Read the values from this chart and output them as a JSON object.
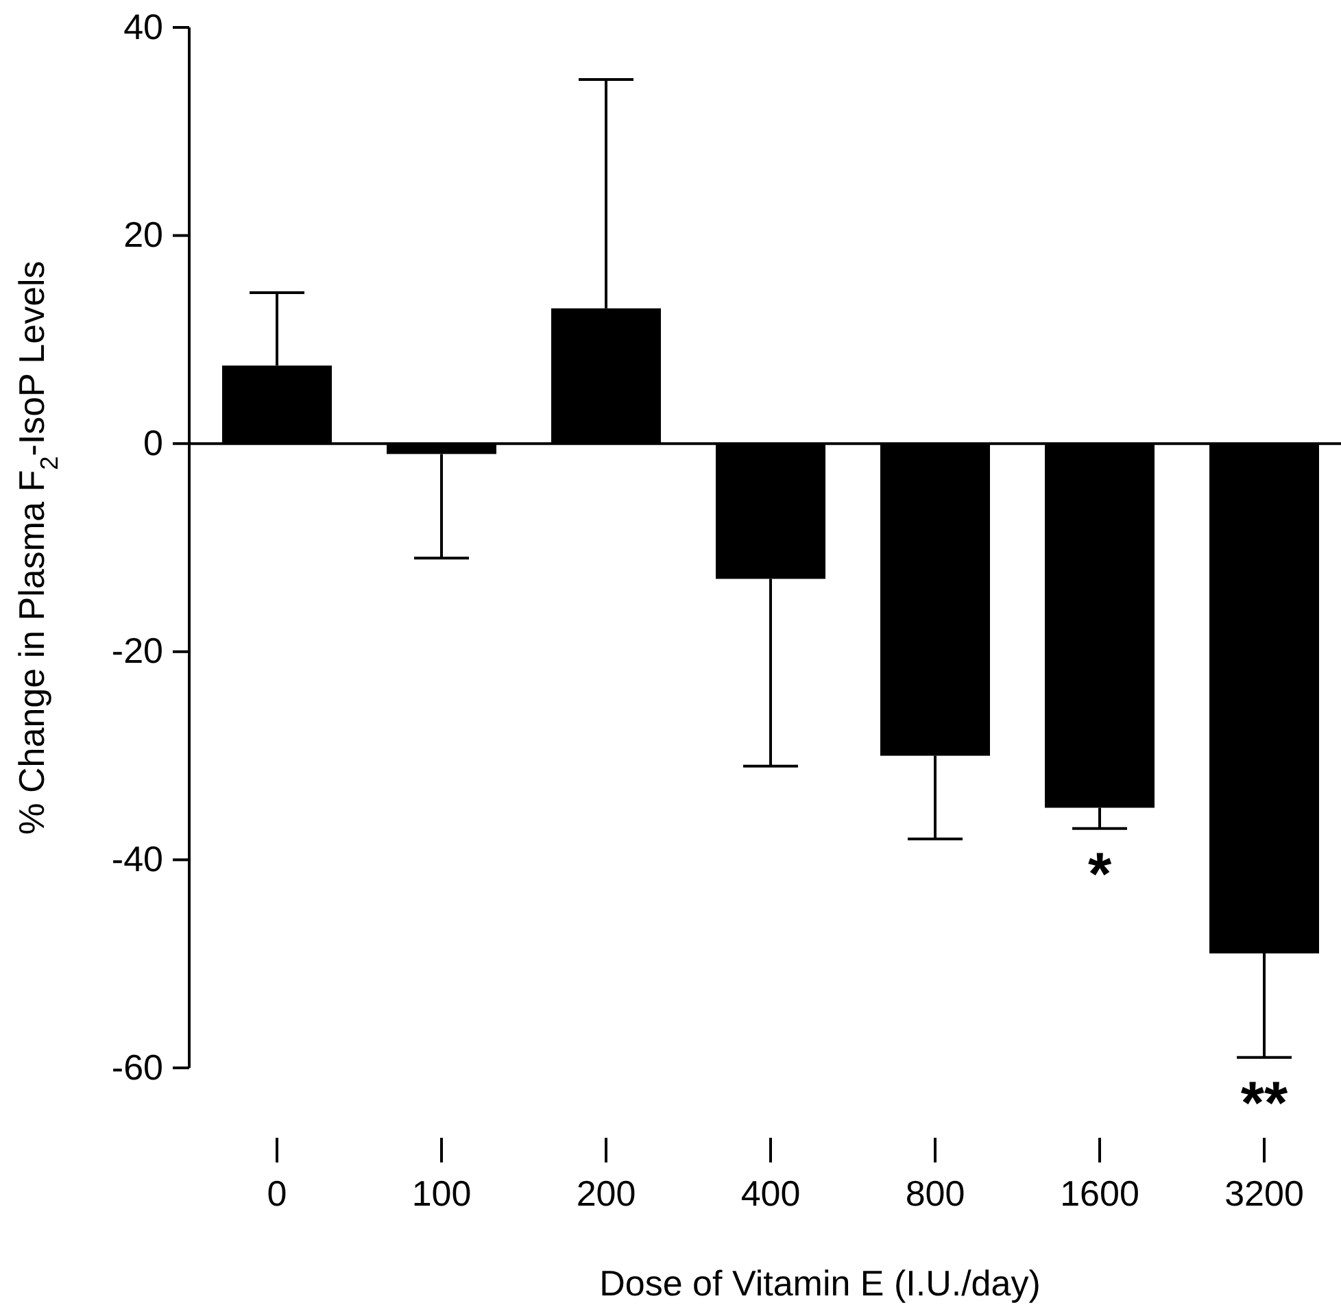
{
  "chart_data": {
    "type": "bar",
    "xlabel": "Dose of Vitamin E (I.U./day)",
    "ylabel": "% Change in Plasma F$_{2}$-IsoP Levels",
    "categories": [
      "0",
      "100",
      "200",
      "400",
      "800",
      "1600",
      "3200"
    ],
    "values": [
      7.5,
      -1,
      13,
      -13,
      -30,
      -35,
      -49
    ],
    "errors": [
      [
        7.5,
        14.5
      ],
      [
        -11,
        -1
      ],
      [
        13,
        35
      ],
      [
        -31,
        -13
      ],
      [
        -38,
        -30
      ],
      [
        -37,
        -35
      ],
      [
        -59,
        -49
      ]
    ],
    "color": "#000000",
    "ylim": [
      -60,
      40
    ],
    "yticks": [
      -60,
      -40,
      -20,
      0,
      20,
      40
    ],
    "annotations": [
      {
        "text": "*",
        "x": "1600",
        "y": -37
      },
      {
        "text": "**",
        "x": "3200",
        "y": -59
      }
    ]
  }
}
